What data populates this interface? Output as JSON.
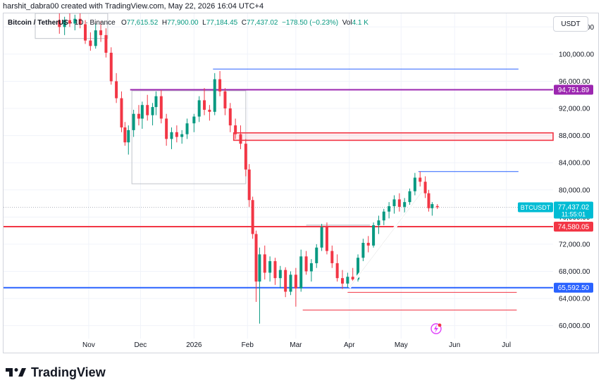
{
  "header": {
    "author": "harshit_dabra00",
    "created_text": "created with TradingView.com, May 22, 2026 16:04 UTC+4"
  },
  "symbol": {
    "name": "Bitcoin / TetherUS",
    "interval": "1D",
    "exchange": "Binance",
    "open_label": "O",
    "open": "77,615.52",
    "high_label": "H",
    "high": "77,900.00",
    "low_label": "L",
    "low": "77,184.45",
    "close_label": "C",
    "close": "77,437.02",
    "change": "−178.50 (−0.23%)",
    "vol_label": "Vol",
    "volume": "4.1 K"
  },
  "currency_button": "USDT",
  "footer": {
    "logo_text": "TradingView"
  },
  "colors": {
    "up": "#089981",
    "down": "#f23645",
    "purple_level": "#9c27b0",
    "red_level": "#f23645",
    "blue_level": "#2962ff",
    "price_badge": "#00bcd4",
    "grid": "#f0f3fa"
  },
  "chart_data": {
    "type": "candlestick",
    "symbol": "BTCUSDT",
    "price_axis": {
      "min": 60000,
      "max": 104000,
      "ticks": [
        "104,000.00",
        "100,000.00",
        "96,000.00",
        "92,000.00",
        "88,000.00",
        "84,000.00",
        "80,000.00",
        "76,000.00",
        "72,000.00",
        "68,000.00",
        "64,000.00",
        "60,000.00"
      ],
      "tick_values": [
        104000,
        100000,
        96000,
        92000,
        88000,
        84000,
        80000,
        76000,
        72000,
        68000,
        64000,
        60000
      ]
    },
    "time_axis": {
      "labels": [
        "Nov",
        "Dec",
        "2026",
        "Feb",
        "Mar",
        "Apr",
        "May",
        "Jun",
        "Jul"
      ],
      "dates": [
        "2025-11-01",
        "2025-12-01",
        "2026-01-01",
        "2026-02-01",
        "2026-03-01",
        "2026-04-01",
        "2026-05-01",
        "2026-06-01",
        "2026-07-01"
      ]
    },
    "horizontal_levels": [
      {
        "price": 94751.89,
        "label": "94,751.89",
        "color": "#9c27b0"
      },
      {
        "price": 74580.05,
        "label": "74,580.05",
        "color": "#f23645"
      },
      {
        "price": 65592.5,
        "label": "65,592.50",
        "color": "#2962ff"
      }
    ],
    "resistance_zone": {
      "top": 88400,
      "bottom": 87300,
      "from": "2026-01-24"
    },
    "current_price": {
      "label": "BTCUSDT",
      "value": "77,437.02",
      "countdown": "11:55:01"
    },
    "trendline": {
      "from": {
        "date": "2026-04-01",
        "price": 65600
      },
      "to": {
        "date": "2026-05-13",
        "price": 79700
      }
    },
    "candles": [
      {
        "date": "2025-10-15",
        "o": 105000,
        "h": 106500,
        "l": 103000,
        "c": 104000
      },
      {
        "date": "2025-10-18",
        "o": 104000,
        "h": 105500,
        "l": 102800,
        "c": 105000
      },
      {
        "date": "2025-10-21",
        "o": 105000,
        "h": 106800,
        "l": 104000,
        "c": 104500
      },
      {
        "date": "2025-10-24",
        "o": 104500,
        "h": 105800,
        "l": 103500,
        "c": 105200
      },
      {
        "date": "2025-10-27",
        "o": 105200,
        "h": 106000,
        "l": 103800,
        "c": 104400
      },
      {
        "date": "2025-10-30",
        "o": 104400,
        "h": 105000,
        "l": 101500,
        "c": 102000
      },
      {
        "date": "2025-11-02",
        "o": 102000,
        "h": 103200,
        "l": 100500,
        "c": 101200
      },
      {
        "date": "2025-11-05",
        "o": 101200,
        "h": 104500,
        "l": 100800,
        "c": 103500
      },
      {
        "date": "2025-11-08",
        "o": 103500,
        "h": 104800,
        "l": 101800,
        "c": 102800
      },
      {
        "date": "2025-11-11",
        "o": 102800,
        "h": 103800,
        "l": 99500,
        "c": 100200
      },
      {
        "date": "2025-11-14",
        "o": 100200,
        "h": 101000,
        "l": 95500,
        "c": 96000
      },
      {
        "date": "2025-11-17",
        "o": 96000,
        "h": 97200,
        "l": 92800,
        "c": 93500
      },
      {
        "date": "2025-11-20",
        "o": 93500,
        "h": 94500,
        "l": 88500,
        "c": 89200
      },
      {
        "date": "2025-11-22",
        "o": 89200,
        "h": 90000,
        "l": 86500,
        "c": 87000
      },
      {
        "date": "2025-11-24",
        "o": 87000,
        "h": 89500,
        "l": 85200,
        "c": 88800
      },
      {
        "date": "2025-11-27",
        "o": 88800,
        "h": 91800,
        "l": 87800,
        "c": 91200
      },
      {
        "date": "2025-11-30",
        "o": 91200,
        "h": 92500,
        "l": 89500,
        "c": 90500
      },
      {
        "date": "2025-12-02",
        "o": 90500,
        "h": 93000,
        "l": 89000,
        "c": 92500
      },
      {
        "date": "2025-12-05",
        "o": 92500,
        "h": 94000,
        "l": 90200,
        "c": 91000
      },
      {
        "date": "2025-12-08",
        "o": 91000,
        "h": 92800,
        "l": 89500,
        "c": 92200
      },
      {
        "date": "2025-12-10",
        "o": 92200,
        "h": 94500,
        "l": 91000,
        "c": 93800
      },
      {
        "date": "2025-12-13",
        "o": 93800,
        "h": 94700,
        "l": 89800,
        "c": 90500
      },
      {
        "date": "2025-12-16",
        "o": 90500,
        "h": 91200,
        "l": 86500,
        "c": 87500
      },
      {
        "date": "2025-12-19",
        "o": 87500,
        "h": 89200,
        "l": 86000,
        "c": 88500
      },
      {
        "date": "2025-12-22",
        "o": 88500,
        "h": 89500,
        "l": 87000,
        "c": 87800
      },
      {
        "date": "2025-12-25",
        "o": 87800,
        "h": 88800,
        "l": 86800,
        "c": 88200
      },
      {
        "date": "2025-12-28",
        "o": 88200,
        "h": 90500,
        "l": 87500,
        "c": 89800
      },
      {
        "date": "2026-01-01",
        "o": 89800,
        "h": 91200,
        "l": 88500,
        "c": 90800
      },
      {
        "date": "2026-01-04",
        "o": 90800,
        "h": 93800,
        "l": 90000,
        "c": 93200
      },
      {
        "date": "2026-01-07",
        "o": 93200,
        "h": 95000,
        "l": 91000,
        "c": 91800
      },
      {
        "date": "2026-01-10",
        "o": 91800,
        "h": 92500,
        "l": 90200,
        "c": 91500
      },
      {
        "date": "2026-01-13",
        "o": 91500,
        "h": 97200,
        "l": 91000,
        "c": 96300
      },
      {
        "date": "2026-01-16",
        "o": 96300,
        "h": 97500,
        "l": 93800,
        "c": 94500
      },
      {
        "date": "2026-01-19",
        "o": 94500,
        "h": 95000,
        "l": 91000,
        "c": 92000
      },
      {
        "date": "2026-01-22",
        "o": 92000,
        "h": 92800,
        "l": 88500,
        "c": 89500
      },
      {
        "date": "2026-01-25",
        "o": 89500,
        "h": 90500,
        "l": 87500,
        "c": 88200
      },
      {
        "date": "2026-01-28",
        "o": 88200,
        "h": 89500,
        "l": 86000,
        "c": 86800
      },
      {
        "date": "2026-01-31",
        "o": 86800,
        "h": 87500,
        "l": 82000,
        "c": 83000
      },
      {
        "date": "2026-02-02",
        "o": 83000,
        "h": 83800,
        "l": 77500,
        "c": 78500
      },
      {
        "date": "2026-02-04",
        "o": 78500,
        "h": 79000,
        "l": 72800,
        "c": 73500
      },
      {
        "date": "2026-02-06",
        "o": 73500,
        "h": 74000,
        "l": 63500,
        "c": 66500
      },
      {
        "date": "2026-02-08",
        "o": 66500,
        "h": 71500,
        "l": 60300,
        "c": 70500
      },
      {
        "date": "2026-02-11",
        "o": 70500,
        "h": 71800,
        "l": 66800,
        "c": 67800
      },
      {
        "date": "2026-02-14",
        "o": 67800,
        "h": 70200,
        "l": 66500,
        "c": 69500
      },
      {
        "date": "2026-02-17",
        "o": 69500,
        "h": 70000,
        "l": 66000,
        "c": 67000
      },
      {
        "date": "2026-02-20",
        "o": 67000,
        "h": 68800,
        "l": 65500,
        "c": 68200
      },
      {
        "date": "2026-02-23",
        "o": 68200,
        "h": 68600,
        "l": 64200,
        "c": 65000
      },
      {
        "date": "2026-02-26",
        "o": 65000,
        "h": 68000,
        "l": 64500,
        "c": 67500
      },
      {
        "date": "2026-03-01",
        "o": 67500,
        "h": 68500,
        "l": 62800,
        "c": 65500
      },
      {
        "date": "2026-03-04",
        "o": 65500,
        "h": 71200,
        "l": 65000,
        "c": 70200
      },
      {
        "date": "2026-03-07",
        "o": 70200,
        "h": 71000,
        "l": 67500,
        "c": 68000
      },
      {
        "date": "2026-03-10",
        "o": 68000,
        "h": 69800,
        "l": 66500,
        "c": 69200
      },
      {
        "date": "2026-03-13",
        "o": 69200,
        "h": 72000,
        "l": 68500,
        "c": 71500
      },
      {
        "date": "2026-03-16",
        "o": 71500,
        "h": 75000,
        "l": 71000,
        "c": 74500
      },
      {
        "date": "2026-03-19",
        "o": 74500,
        "h": 75200,
        "l": 70500,
        "c": 71000
      },
      {
        "date": "2026-03-22",
        "o": 71000,
        "h": 71800,
        "l": 68500,
        "c": 69200
      },
      {
        "date": "2026-03-25",
        "o": 69200,
        "h": 70500,
        "l": 66500,
        "c": 67000
      },
      {
        "date": "2026-03-28",
        "o": 67000,
        "h": 68200,
        "l": 65400,
        "c": 66200
      },
      {
        "date": "2026-03-31",
        "o": 66200,
        "h": 67800,
        "l": 65600,
        "c": 67200
      },
      {
        "date": "2026-04-03",
        "o": 67200,
        "h": 68500,
        "l": 66000,
        "c": 66800
      },
      {
        "date": "2026-04-06",
        "o": 66800,
        "h": 70500,
        "l": 66500,
        "c": 70000
      },
      {
        "date": "2026-04-09",
        "o": 70000,
        "h": 72800,
        "l": 69500,
        "c": 72200
      },
      {
        "date": "2026-04-12",
        "o": 72200,
        "h": 73200,
        "l": 70800,
        "c": 71800
      },
      {
        "date": "2026-04-15",
        "o": 71800,
        "h": 75200,
        "l": 71500,
        "c": 74800
      },
      {
        "date": "2026-04-18",
        "o": 74800,
        "h": 76200,
        "l": 73500,
        "c": 75500
      },
      {
        "date": "2026-04-21",
        "o": 75500,
        "h": 77200,
        "l": 74800,
        "c": 76800
      },
      {
        "date": "2026-04-24",
        "o": 76800,
        "h": 78200,
        "l": 75800,
        "c": 77600
      },
      {
        "date": "2026-04-27",
        "o": 77600,
        "h": 79200,
        "l": 76500,
        "c": 78600
      },
      {
        "date": "2026-04-30",
        "o": 78600,
        "h": 79500,
        "l": 76800,
        "c": 77500
      },
      {
        "date": "2026-05-03",
        "o": 77500,
        "h": 78800,
        "l": 76500,
        "c": 78200
      },
      {
        "date": "2026-05-06",
        "o": 78200,
        "h": 80200,
        "l": 77800,
        "c": 79800
      },
      {
        "date": "2026-05-09",
        "o": 79800,
        "h": 82500,
        "l": 79200,
        "c": 81800
      },
      {
        "date": "2026-05-12",
        "o": 81800,
        "h": 82700,
        "l": 80500,
        "c": 81200
      },
      {
        "date": "2026-05-15",
        "o": 81200,
        "h": 82000,
        "l": 78800,
        "c": 79500
      },
      {
        "date": "2026-05-17",
        "o": 79500,
        "h": 80000,
        "l": 76800,
        "c": 77300
      },
      {
        "date": "2026-05-19",
        "o": 77300,
        "h": 78200,
        "l": 76200,
        "c": 77900
      },
      {
        "date": "2026-05-22",
        "o": 77615.52,
        "h": 77900,
        "l": 77184.45,
        "c": 77437.02
      }
    ]
  }
}
